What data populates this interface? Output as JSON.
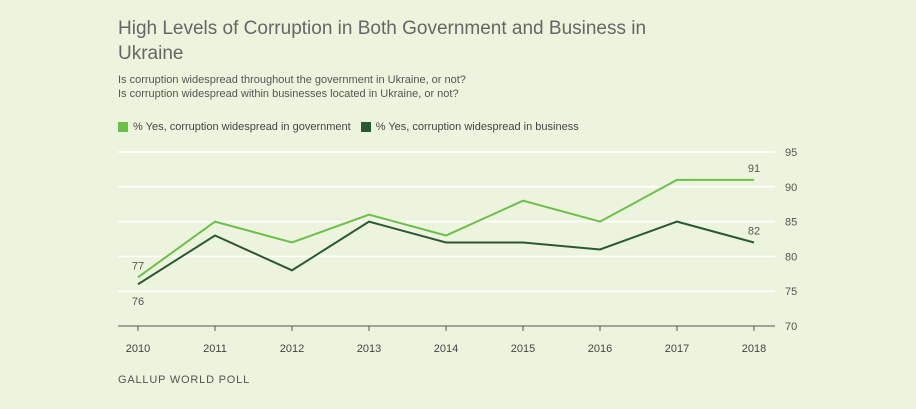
{
  "chart_data": {
    "type": "line",
    "title": "High Levels of Corruption in Both Government and Business in Ukraine",
    "subtitle_lines": [
      "Is corruption widespread throughout the government in Ukraine, or not?",
      "Is corruption widespread within businesses located in Ukraine, or not?"
    ],
    "categories": [
      "2010",
      "2011",
      "2012",
      "2013",
      "2014",
      "2015",
      "2016",
      "2017",
      "2018"
    ],
    "ylim": [
      70,
      95
    ],
    "yticks": [
      70,
      75,
      80,
      85,
      90,
      95
    ],
    "series": [
      {
        "name": "% Yes, corruption widespread in government",
        "color": "#6cc04a",
        "values": [
          77,
          85,
          82,
          86,
          83,
          88,
          85,
          91,
          91
        ]
      },
      {
        "name": "% Yes, corruption widespread in business",
        "color": "#2a5a33",
        "values": [
          76,
          83,
          78,
          85,
          82,
          82,
          81,
          85,
          82
        ]
      }
    ],
    "data_labels": [
      {
        "series": 0,
        "index": 0,
        "text": "77"
      },
      {
        "series": 1,
        "index": 0,
        "text": "76"
      },
      {
        "series": 0,
        "index": 8,
        "text": "91"
      },
      {
        "series": 1,
        "index": 8,
        "text": "82"
      }
    ],
    "grid_color": "#ffffff",
    "axis_color": "#555555",
    "source": "GALLUP WORLD POLL"
  }
}
